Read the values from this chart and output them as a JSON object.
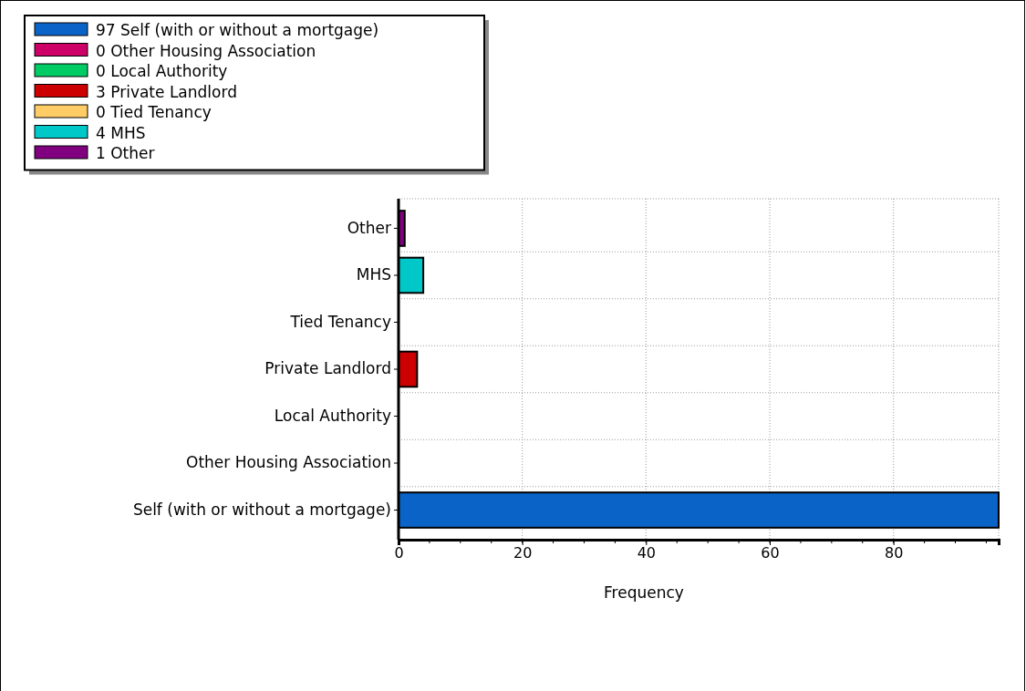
{
  "chart_data": {
    "type": "bar",
    "orientation": "horizontal",
    "xlabel": "Frequency",
    "categories": [
      "Other",
      "MHS",
      "Tied Tenancy",
      "Private Landlord",
      "Local Authority",
      "Other Housing Association",
      "Self (with or without a mortgage)"
    ],
    "series": [
      {
        "name": "97 Self (with or without a mortgage)",
        "color": "#0a64c8",
        "values": [
          null,
          null,
          null,
          null,
          null,
          null,
          97
        ]
      },
      {
        "name": "0 Other Housing Association",
        "color": "#cc0066",
        "values": [
          null,
          null,
          null,
          null,
          null,
          0,
          null
        ]
      },
      {
        "name": "0 Local Authority",
        "color": "#00cc66",
        "values": [
          null,
          null,
          null,
          null,
          0,
          null,
          null
        ]
      },
      {
        "name": "3 Private Landlord",
        "color": "#cc0000",
        "values": [
          null,
          null,
          null,
          3,
          null,
          null,
          null
        ]
      },
      {
        "name": "0 Tied Tenancy",
        "color": "#ffcc66",
        "values": [
          null,
          null,
          0,
          null,
          null,
          null,
          null
        ]
      },
      {
        "name": "4 MHS",
        "color": "#00c8c8",
        "values": [
          null,
          4,
          null,
          null,
          null,
          null,
          null
        ]
      },
      {
        "name": "1 Other",
        "color": "#800080",
        "values": [
          1,
          null,
          null,
          null,
          null,
          null,
          null
        ]
      }
    ],
    "xlim": [
      0,
      97
    ],
    "xticks": [
      0,
      20,
      40,
      60,
      80
    ],
    "grid": true,
    "legend": "top left"
  }
}
